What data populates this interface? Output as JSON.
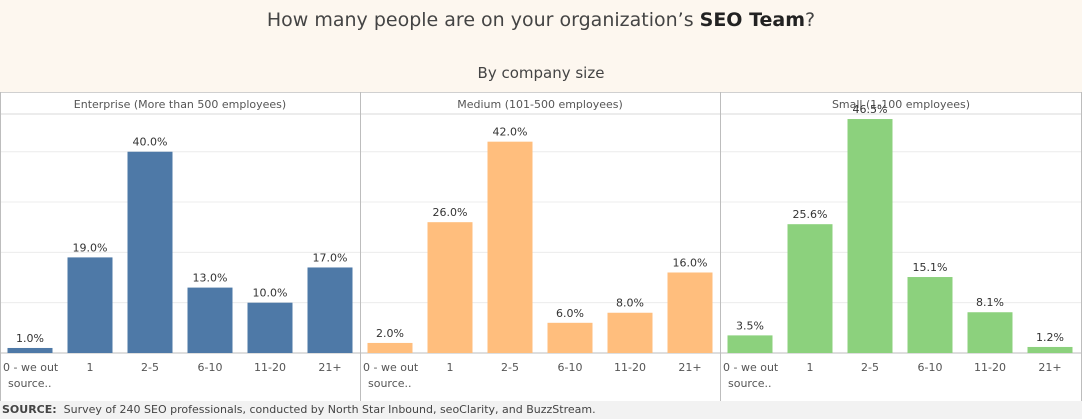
{
  "header": {
    "title_prefix": "How many people are on your organization’s ",
    "title_bold": "SEO Team",
    "title_suffix": "?",
    "subtitle": "By company size"
  },
  "footer": {
    "label": "SOURCE:",
    "text": "Survey of 240 SEO professionals, conducted by North Star Inbound, seoClarity, and BuzzStream."
  },
  "colors": {
    "enterprise": "#4e79a7",
    "medium": "#ffbe7d",
    "small": "#8cd17d"
  },
  "chart_data": [
    {
      "type": "bar",
      "title": "Enterprise (More than 500 employees)",
      "categories": [
        "0 - we out source..",
        "1",
        "2-5",
        "6-10",
        "11-20",
        "21+"
      ],
      "values": [
        1.0,
        19.0,
        40.0,
        13.0,
        10.0,
        17.0
      ],
      "value_labels": [
        "1.0%",
        "19.0%",
        "40.0%",
        "13.0%",
        "10.0%",
        "17.0%"
      ],
      "color": "#4e79a7",
      "ylim": [
        0,
        47.5
      ]
    },
    {
      "type": "bar",
      "title": "Medium (101-500 employees)",
      "categories": [
        "0 - we out source..",
        "1",
        "2-5",
        "6-10",
        "11-20",
        "21+"
      ],
      "values": [
        2.0,
        26.0,
        42.0,
        6.0,
        8.0,
        16.0
      ],
      "value_labels": [
        "2.0%",
        "26.0%",
        "42.0%",
        "6.0%",
        "8.0%",
        "16.0%"
      ],
      "color": "#ffbe7d",
      "ylim": [
        0,
        47.5
      ]
    },
    {
      "type": "bar",
      "title": "Small (1-100 employees)",
      "categories": [
        "0 - we out source..",
        "1",
        "2-5",
        "6-10",
        "11-20",
        "21+"
      ],
      "values": [
        3.5,
        25.6,
        46.5,
        15.1,
        8.1,
        1.2
      ],
      "value_labels": [
        "3.5%",
        "25.6%",
        "46.5%",
        "15.1%",
        "8.1%",
        "1.2%"
      ],
      "color": "#8cd17d",
      "ylim": [
        0,
        47.5
      ]
    }
  ]
}
